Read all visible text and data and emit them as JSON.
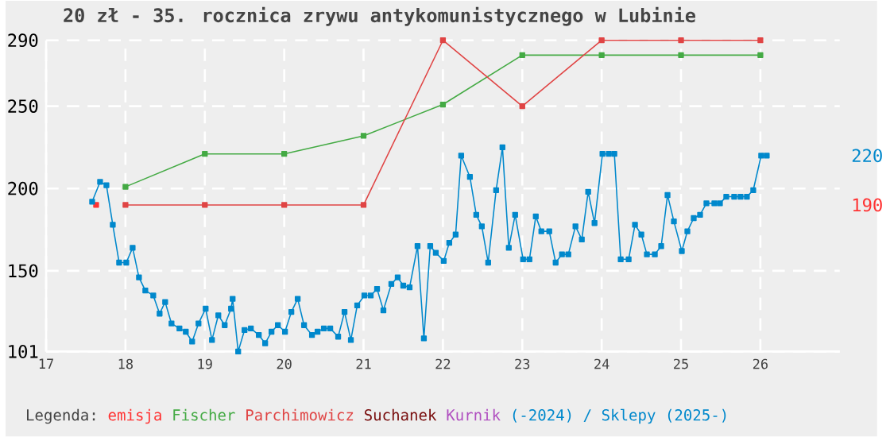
{
  "chart_data": {
    "type": "line",
    "title": "20 zł - 35. rocznica zrywu antykomunistycznego w Lubinie",
    "legend_title": "Legenda:",
    "xlim": [
      17,
      27
    ],
    "ylim": [
      101,
      290
    ],
    "xticks": [
      17,
      18,
      19,
      20,
      21,
      22,
      23,
      24,
      25,
      26
    ],
    "yticks": [
      101,
      150,
      200,
      250,
      290
    ],
    "grid": true,
    "legend": "bottom",
    "marker": "square",
    "line_style": "solid",
    "series": [
      {
        "name": "emisja",
        "color": "#ff3333",
        "x": [
          17.63
        ],
        "values": [
          190
        ]
      },
      {
        "name": "Fischer",
        "color": "#44aa44",
        "x": [
          18,
          19,
          20,
          21,
          22,
          23,
          24,
          25,
          26
        ],
        "values": [
          201,
          221,
          221,
          232,
          251,
          281,
          281,
          281,
          281
        ]
      },
      {
        "name": "Parchimowicz",
        "color": "#e04444",
        "x": [
          18,
          19,
          20,
          21,
          22,
          23,
          24,
          25,
          26
        ],
        "values": [
          190,
          190,
          190,
          190,
          290,
          250,
          290,
          290,
          290
        ]
      },
      {
        "name": "Suchanek",
        "color": "#7a0f0f"
      },
      {
        "name": "Kurnik",
        "color": "#b04fc0"
      },
      {
        "name": "(-2024) / Sklepy (2025-)",
        "color": "#0088cc",
        "x": [
          17.58,
          17.68,
          17.76,
          17.84,
          17.92,
          18.01,
          18.09,
          18.17,
          18.25,
          18.35,
          18.43,
          18.5,
          18.58,
          18.68,
          18.76,
          18.84,
          18.92,
          19.01,
          19.09,
          19.17,
          19.25,
          19.33,
          19.35,
          19.42,
          19.5,
          19.58,
          19.68,
          19.76,
          19.84,
          19.92,
          20.01,
          20.09,
          20.17,
          20.25,
          20.35,
          20.42,
          20.5,
          20.58,
          20.68,
          20.76,
          20.84,
          20.92,
          21.01,
          21.09,
          21.17,
          21.25,
          21.35,
          21.43,
          21.5,
          21.58,
          21.68,
          21.76,
          21.84,
          21.91,
          22.01,
          22.08,
          22.16,
          22.23,
          22.34,
          22.42,
          22.49,
          22.57,
          22.67,
          22.75,
          22.83,
          22.91,
          23.01,
          23.09,
          23.17,
          23.24,
          23.34,
          23.42,
          23.5,
          23.58,
          23.67,
          23.75,
          23.83,
          23.91,
          24.01,
          24.09,
          24.16,
          24.24,
          24.34,
          24.42,
          24.5,
          24.57,
          24.67,
          24.75,
          24.83,
          24.91,
          25.01,
          25.08,
          25.16,
          25.24,
          25.32,
          25.42,
          25.49,
          25.57,
          25.67,
          25.75,
          25.83,
          25.91,
          26.01,
          26.08
        ],
        "values": [
          192,
          204,
          202,
          178,
          155,
          155,
          164,
          146,
          138,
          135,
          124,
          131,
          118,
          115,
          113,
          107,
          118,
          127,
          108,
          123,
          117,
          127,
          133,
          101,
          114,
          115,
          111,
          106,
          113,
          117,
          113,
          125,
          133,
          117,
          111,
          113,
          115,
          115,
          110,
          125,
          108,
          129,
          135,
          135,
          139,
          126,
          142,
          146,
          141,
          140,
          165,
          109,
          165,
          161,
          156,
          167,
          172,
          220,
          207,
          184,
          177,
          155,
          199,
          225,
          164,
          184,
          157,
          157,
          183,
          174,
          174,
          155,
          160,
          160,
          177,
          169,
          198,
          179,
          221,
          221,
          221,
          157,
          157,
          178,
          172,
          160,
          160,
          165,
          196,
          180,
          162,
          174,
          182,
          184,
          191,
          191,
          191,
          195,
          195,
          195,
          195,
          199,
          220,
          220
        ]
      }
    ],
    "annotations": [
      "220",
      "190"
    ]
  }
}
